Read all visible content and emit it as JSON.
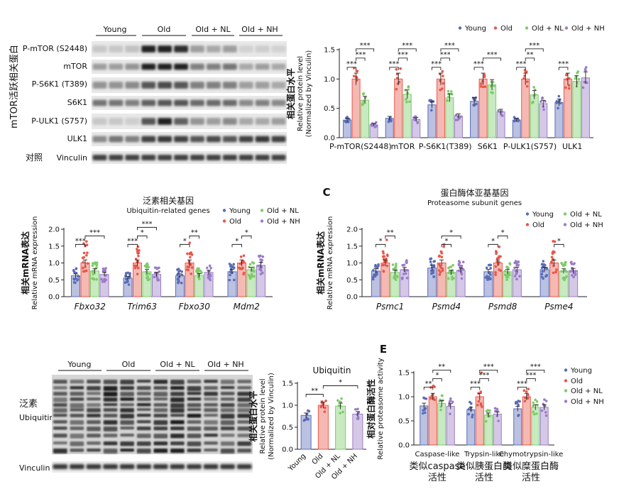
{
  "groups": [
    "Young",
    "Old",
    "Old + NL",
    "Old + NH"
  ],
  "colors": {
    "Young": "#5a6cb8",
    "Old": "#e8574a",
    "Old + NL": "#7ccc6a",
    "Old + NH": "#9a7cc6"
  },
  "panel_a": {
    "side_title": "mTOR活跃相关蛋白",
    "blot_labels": [
      "P-mTOR (S2448)",
      "mTOR",
      "P-S6K1 (T389)",
      "S6K1",
      "P-ULK1 (S757)",
      "ULK1"
    ],
    "control_label": "对照",
    "vinculin_label": "Vinculin"
  },
  "panel_d": {
    "side_title": "泛素",
    "side_title_en": "Ubiquitin",
    "vinculin_label": "Vinculin"
  },
  "chart_data": [
    {
      "id": "A_right",
      "type": "bar",
      "title": "",
      "ylabel_cn": "相关蛋白水平",
      "ylabel": "Relative protein level",
      "ylabel2": "(Normalized by Vinculin)",
      "ylim": [
        0,
        1.5
      ],
      "yticks": [
        "0.0",
        "0.5",
        "1.0",
        "1.5"
      ],
      "categories": [
        "P-mTOR(S2448)",
        "mTOR",
        "P-S6K1(T389)",
        "S6K1",
        "P-ULK1(S757)",
        "ULK1"
      ],
      "series": [
        {
          "name": "Young",
          "values": [
            0.3,
            0.33,
            0.56,
            0.62,
            0.3,
            0.6
          ]
        },
        {
          "name": "Old",
          "values": [
            1.0,
            1.0,
            1.0,
            1.0,
            1.0,
            1.0
          ]
        },
        {
          "name": "Old + NL",
          "values": [
            0.64,
            0.74,
            0.68,
            0.9,
            0.73,
            0.96
          ]
        },
        {
          "name": "Old + NH",
          "values": [
            0.22,
            0.31,
            0.37,
            0.44,
            0.58,
            1.02
          ]
        }
      ],
      "sig": [
        {
          "cat": 0,
          "a": 0,
          "b": 1,
          "label": "***"
        },
        {
          "cat": 0,
          "a": 1,
          "b": 2,
          "label": "***"
        },
        {
          "cat": 0,
          "a": 1,
          "b": 3,
          "label": "***"
        },
        {
          "cat": 1,
          "a": 0,
          "b": 1,
          "label": "***"
        },
        {
          "cat": 1,
          "a": 1,
          "b": 2,
          "label": "***"
        },
        {
          "cat": 1,
          "a": 1,
          "b": 3,
          "label": "***"
        },
        {
          "cat": 2,
          "a": 0,
          "b": 1,
          "label": "***"
        },
        {
          "cat": 2,
          "a": 1,
          "b": 2,
          "label": "***"
        },
        {
          "cat": 2,
          "a": 1,
          "b": 3,
          "label": "***"
        },
        {
          "cat": 3,
          "a": 0,
          "b": 1,
          "label": "***"
        },
        {
          "cat": 3,
          "a": 1,
          "b": 3,
          "label": "***"
        },
        {
          "cat": 4,
          "a": 0,
          "b": 1,
          "label": "***"
        },
        {
          "cat": 4,
          "a": 1,
          "b": 2,
          "label": "**"
        },
        {
          "cat": 4,
          "a": 1,
          "b": 3,
          "label": "***"
        },
        {
          "cat": 5,
          "a": 0,
          "b": 1,
          "label": "***"
        }
      ],
      "legend": "top"
    },
    {
      "id": "B",
      "type": "bar",
      "title": "泛素相关基因",
      "subtitle": "Ubiquitin-related genes",
      "ylabel_cn": "相关mRNA表达",
      "ylabel": "Relative mRNA expression",
      "ylim": [
        0,
        2.0
      ],
      "yticks": [
        "0.0",
        "0.5",
        "1.0",
        "1.5",
        "2.0"
      ],
      "categories": [
        "Fbxo32",
        "Trim63",
        "Fbxo30",
        "Mdm2"
      ],
      "series": [
        {
          "name": "Young",
          "values": [
            0.62,
            0.55,
            0.62,
            0.74
          ]
        },
        {
          "name": "Old",
          "values": [
            1.0,
            1.0,
            1.0,
            1.0
          ]
        },
        {
          "name": "Old + NL",
          "values": [
            0.76,
            0.74,
            0.63,
            0.8
          ]
        },
        {
          "name": "Old + NH",
          "values": [
            0.66,
            0.66,
            0.72,
            0.93
          ]
        }
      ],
      "sig": [
        {
          "cat": 0,
          "a": 0,
          "b": 1,
          "label": "***"
        },
        {
          "cat": 0,
          "a": 1,
          "b": 3,
          "label": "***"
        },
        {
          "cat": 1,
          "a": 0,
          "b": 1,
          "label": "***"
        },
        {
          "cat": 1,
          "a": 1,
          "b": 2,
          "label": "*"
        },
        {
          "cat": 1,
          "a": 1,
          "b": 3,
          "label": "***"
        },
        {
          "cat": 2,
          "a": 0,
          "b": 1,
          "label": "*"
        },
        {
          "cat": 2,
          "a": 1,
          "b": 2,
          "label": "**"
        },
        {
          "cat": 3,
          "a": 0,
          "b": 1,
          "label": "*"
        },
        {
          "cat": 3,
          "a": 1,
          "b": 2,
          "label": "*"
        }
      ],
      "legend": "right"
    },
    {
      "id": "C",
      "type": "bar",
      "panel_letter": "C",
      "title": "蛋白酶体亚基基因",
      "subtitle": "Proteasome subunit genes",
      "ylabel_cn": "相关mRNA表达",
      "ylabel": "Relative mRNA expression",
      "ylim": [
        0,
        2.0
      ],
      "yticks": [
        "0.0",
        "0.5",
        "1.0",
        "1.5",
        "2.0"
      ],
      "categories": [
        "Psmc1",
        "Psmd4",
        "Psmd8",
        "Psme4"
      ],
      "series": [
        {
          "name": "Young",
          "values": [
            0.76,
            0.85,
            0.74,
            0.8
          ]
        },
        {
          "name": "Old",
          "values": [
            1.0,
            1.0,
            1.0,
            1.0
          ]
        },
        {
          "name": "Old + NL",
          "values": [
            0.72,
            0.72,
            0.74,
            0.76
          ]
        },
        {
          "name": "Old + NH",
          "values": [
            0.8,
            0.78,
            0.8,
            0.77
          ]
        }
      ],
      "sig": [
        {
          "cat": 0,
          "a": 0,
          "b": 1,
          "label": "*"
        },
        {
          "cat": 0,
          "a": 1,
          "b": 2,
          "label": "**"
        },
        {
          "cat": 1,
          "a": 1,
          "b": 2,
          "label": "*"
        },
        {
          "cat": 1,
          "a": 1,
          "b": 3,
          "label": "*"
        },
        {
          "cat": 2,
          "a": 0,
          "b": 1,
          "label": "*"
        },
        {
          "cat": 2,
          "a": 1,
          "b": 2,
          "label": "*"
        },
        {
          "cat": 3,
          "a": 1,
          "b": 2,
          "label": "*"
        }
      ],
      "legend": "right"
    },
    {
      "id": "D_right",
      "type": "bar",
      "title": "Ubiquitin",
      "ylabel_cn": "相关蛋白水平",
      "ylabel": "Relative protein level",
      "ylabel2": "(Normalized by Vinculin)",
      "ylim": [
        0,
        1.5
      ],
      "yticks": [
        "0.0",
        "0.5",
        "1.0",
        "1.5"
      ],
      "categories": [
        "Young",
        "Old",
        "Old + NL",
        "Old + NH"
      ],
      "values": [
        0.77,
        1.0,
        0.98,
        0.8
      ],
      "sig": [
        {
          "a": 0,
          "b": 1,
          "label": "**"
        },
        {
          "a": 1,
          "b": 3,
          "label": "*"
        }
      ]
    },
    {
      "id": "E",
      "type": "bar",
      "panel_letter": "E",
      "ylabel_cn": "相对蛋白酶活性",
      "ylabel": "Relative proteasome activity",
      "ylim": [
        0,
        1.5
      ],
      "yticks": [
        "0.0",
        "0.5",
        "1.0",
        "1.5"
      ],
      "categories": [
        "Caspase-like",
        "Trypsin-like",
        "Chymotrypsin-like"
      ],
      "categories_cn": [
        "类似caspase活性",
        "类似胰蛋白酶活性",
        "类似糜蛋白酶活性"
      ],
      "series": [
        {
          "name": "Young",
          "values": [
            0.81,
            0.73,
            0.75
          ]
        },
        {
          "name": "Old",
          "values": [
            1.0,
            1.0,
            1.0
          ]
        },
        {
          "name": "Old + NL",
          "values": [
            0.86,
            0.62,
            0.78
          ]
        },
        {
          "name": "Old + NH",
          "values": [
            0.8,
            0.64,
            0.78
          ]
        }
      ],
      "sig": [
        {
          "cat": 0,
          "a": 0,
          "b": 1,
          "label": "**"
        },
        {
          "cat": 0,
          "a": 1,
          "b": 2,
          "label": "*"
        },
        {
          "cat": 0,
          "a": 1,
          "b": 3,
          "label": "**"
        },
        {
          "cat": 1,
          "a": 0,
          "b": 1,
          "label": "***"
        },
        {
          "cat": 1,
          "a": 1,
          "b": 2,
          "label": "***"
        },
        {
          "cat": 1,
          "a": 1,
          "b": 3,
          "label": "***"
        },
        {
          "cat": 2,
          "a": 0,
          "b": 1,
          "label": "***"
        },
        {
          "cat": 2,
          "a": 1,
          "b": 2,
          "label": "***"
        },
        {
          "cat": 2,
          "a": 1,
          "b": 3,
          "label": "***"
        }
      ],
      "legend": "right"
    }
  ]
}
